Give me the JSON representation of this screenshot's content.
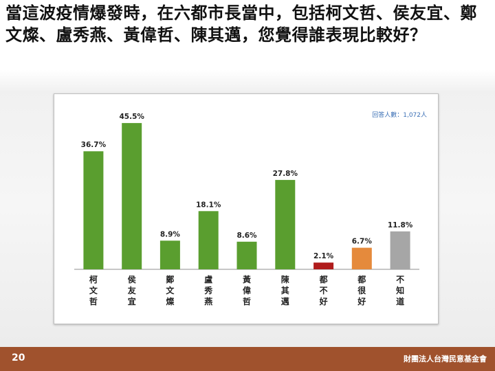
{
  "slide": {
    "question": "當這波疫情爆發時，在六都市長當中，包括柯文哲、侯友宜、鄭文燦、盧秀燕、黃偉哲、陳其邁，您覺得誰表現比較好？",
    "page_number": "20",
    "organization": "財團法人台灣民意基金會"
  },
  "chart_data": {
    "type": "bar",
    "title": "",
    "note": "回答人數：1,072人",
    "categories": [
      "柯文哲",
      "侯友宜",
      "鄭文燦",
      "盧秀燕",
      "黃偉哲",
      "陳其邁",
      "都不好",
      "都很好",
      "不知道"
    ],
    "values": [
      36.7,
      45.5,
      8.9,
      18.1,
      8.6,
      27.8,
      2.1,
      6.7,
      11.8
    ],
    "value_labels": [
      "36.7%",
      "45.5%",
      "8.9%",
      "18.1%",
      "8.6%",
      "27.8%",
      "2.1%",
      "6.7%",
      "11.8%"
    ],
    "bar_colors": [
      "#5a9e2f",
      "#5a9e2f",
      "#5a9e2f",
      "#5a9e2f",
      "#5a9e2f",
      "#5a9e2f",
      "#b01c1c",
      "#e58a3c",
      "#a6a6a6"
    ],
    "ylim": [
      0,
      50
    ],
    "grid": false,
    "legend": "none"
  }
}
